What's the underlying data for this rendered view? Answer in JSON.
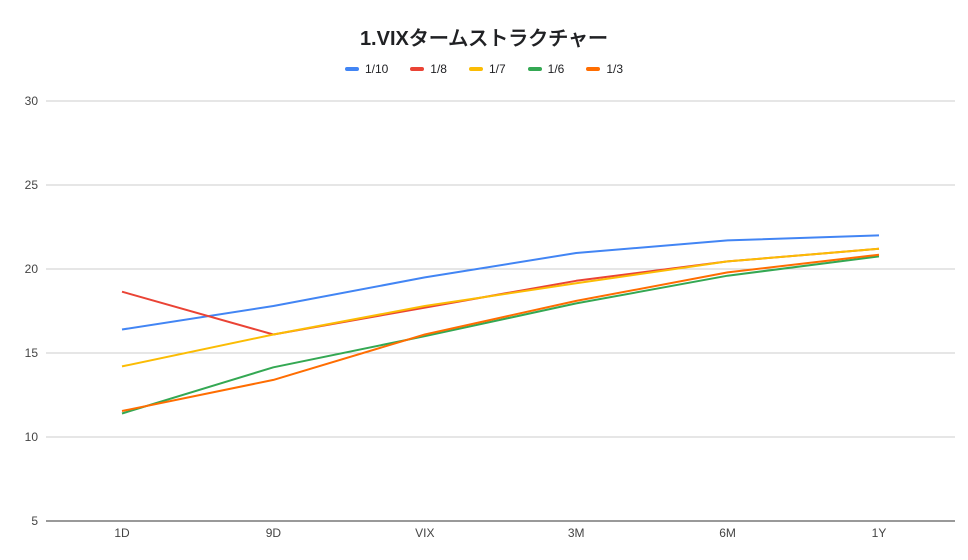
{
  "chart_data": {
    "type": "line",
    "title": "1.VIXタームストラクチャー",
    "xlabel": "",
    "ylabel": "",
    "categories": [
      "1D",
      "9D",
      "VIX",
      "3M",
      "6M",
      "1Y"
    ],
    "ylim": [
      5,
      30
    ],
    "yticks": [
      5,
      10,
      15,
      20,
      25,
      30
    ],
    "grid": true,
    "legend_position": "top",
    "series": [
      {
        "name": "1/10",
        "color": "#4285f4",
        "values": [
          16.4,
          17.8,
          19.5,
          20.95,
          21.7,
          22.0
        ]
      },
      {
        "name": "1/8",
        "color": "#ea4335",
        "values": [
          18.65,
          16.1,
          17.7,
          19.3,
          20.45,
          21.2
        ]
      },
      {
        "name": "1/7",
        "color": "#fbbc04",
        "values": [
          14.2,
          16.1,
          17.8,
          19.15,
          20.45,
          21.2
        ]
      },
      {
        "name": "1/6",
        "color": "#34a853",
        "values": [
          11.4,
          14.15,
          16.0,
          17.95,
          19.6,
          20.75
        ]
      },
      {
        "name": "1/3",
        "color": "#ff6d01",
        "values": [
          11.55,
          13.4,
          16.1,
          18.1,
          19.8,
          20.85
        ]
      }
    ]
  }
}
